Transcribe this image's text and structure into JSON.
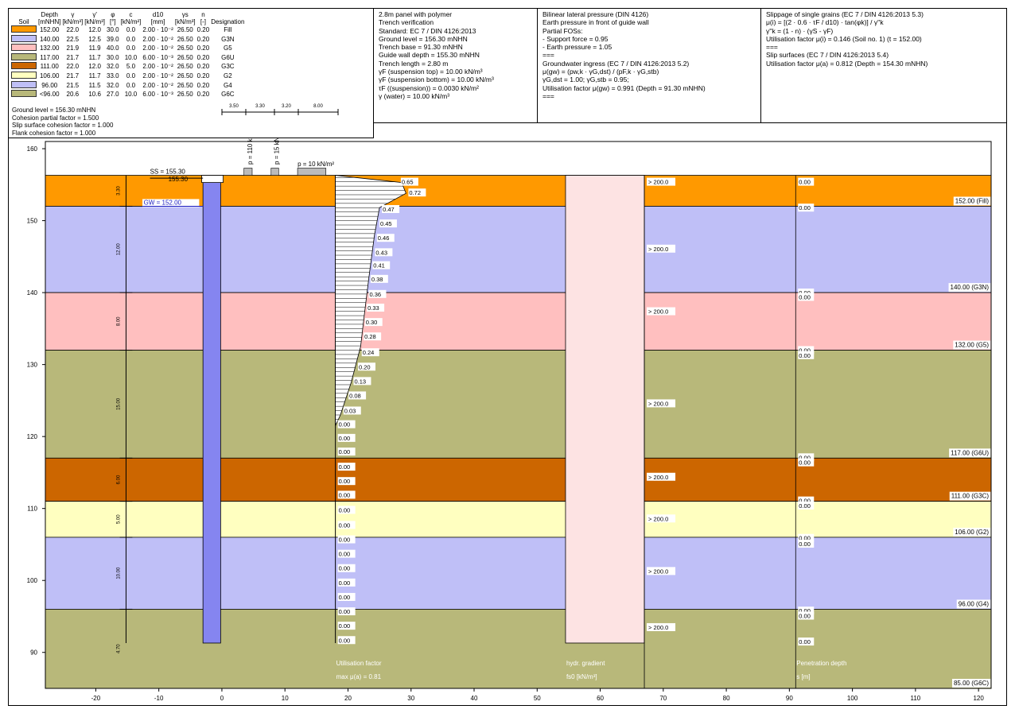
{
  "legend": {
    "headers": [
      "Soil",
      "Depth\n[mNHN]",
      "γ\n[kN/m³]",
      "γ'\n[kN/m³]",
      "φ\n[°]",
      "c\n[kN/m²]",
      "d10\n[mm]",
      "γs\n[kN/m³]",
      "n\n[-]",
      "Designation"
    ],
    "rows": [
      {
        "color": "#ff9900",
        "depth": "152.00",
        "g": "22.0",
        "g2": "12.0",
        "phi": "30.0",
        "c": "0.0",
        "d10": "2.00 · 10⁻²",
        "gs": "26.50",
        "n": "0.20",
        "des": "Fill"
      },
      {
        "color": "#bfbff7",
        "depth": "140.00",
        "g": "22.5",
        "g2": "12.5",
        "phi": "39.0",
        "c": "0.0",
        "d10": "2.00 · 10⁻²",
        "gs": "26.50",
        "n": "0.20",
        "des": "G3N"
      },
      {
        "color": "#ffbfbf",
        "depth": "132.00",
        "g": "21.9",
        "g2": "11.9",
        "phi": "40.0",
        "c": "0.0",
        "d10": "2.00 · 10⁻²",
        "gs": "26.50",
        "n": "0.20",
        "des": "G5"
      },
      {
        "color": "#b8b87a",
        "depth": "117.00",
        "g": "21.7",
        "g2": "11.7",
        "phi": "30.0",
        "c": "10.0",
        "d10": "6.00 · 10⁻³",
        "gs": "26.50",
        "n": "0.20",
        "des": "G6U"
      },
      {
        "color": "#cc6600",
        "depth": "111.00",
        "g": "22.0",
        "g2": "12.0",
        "phi": "32.0",
        "c": "5.0",
        "d10": "2.00 · 10⁻²",
        "gs": "26.50",
        "n": "0.20",
        "des": "G3C"
      },
      {
        "color": "#ffffc0",
        "depth": "106.00",
        "g": "21.7",
        "g2": "11.7",
        "phi": "33.0",
        "c": "0.0",
        "d10": "2.00 · 10⁻²",
        "gs": "26.50",
        "n": "0.20",
        "des": "G2"
      },
      {
        "color": "#bfbff7",
        "depth": "96.00",
        "g": "21.5",
        "g2": "11.5",
        "phi": "32.0",
        "c": "0.0",
        "d10": "2.00 · 10⁻²",
        "gs": "26.50",
        "n": "0.20",
        "des": "G4"
      },
      {
        "color": "#b8b87a",
        "depth": "<96.00",
        "g": "20.6",
        "g2": "10.6",
        "phi": "27.0",
        "c": "10.0",
        "d10": "6.00 · 10⁻³",
        "gs": "26.50",
        "n": "0.20",
        "des": "G6C"
      }
    ],
    "footer": [
      "Ground level = 156.30 mNHN",
      "Cohesion partial factor = 1.500",
      "Slip surface cohesion factor = 1.000",
      "Flank cohesion factor = 1.000"
    ],
    "dims": [
      "3.50",
      "3.30",
      "3.20",
      "8.00"
    ]
  },
  "info": {
    "col1": [
      "2.8m panel with polymer",
      "Trench verification",
      "Standard: EC 7 / DIN 4126:2013",
      "Ground level = 156.30 mNHN",
      "Trench base = 91.30 mNHN",
      "Guide wall depth = 155.30 mNHN",
      "Trench length = 2.80 m",
      "γF (suspension top) = 10.00 kN/m³",
      "γF (suspension bottom) = 10.00 kN/m³",
      "τF ((suspension)) = 0.0030 kN/m²",
      "γ (water) = 10.00 kN/m³"
    ],
    "col2": [
      "Bilinear lateral pressure (DIN 4126)",
      "Earth pressure in front of guide wall",
      "Partial FOSs:",
      "- Support force = 0.95",
      "- Earth pressure = 1.05",
      "===",
      "Groundwater ingress (EC 7 / DIN 4126:2013 5.2)",
      "μ(gw) = (pw,k · γG,dst) / (pF,k · γG,stb)",
      "γG,dst = 1.00;  γG,stb = 0.95;",
      "Utilisation factor μ(gw) = 0.991 (Depth = 91.30 mNHN)",
      "==="
    ],
    "col3": [
      "Slippage of single grains (EC 7 / DIN 4126:2013 5.3)",
      "μ(i) = [(2 · 0.6 · τF / d10) · tan(φk)] / γ''k",
      "γ''k = (1 - n) · (γS - γF)",
      "Utilisation factor μ(i) = 0.146 (Soil no. 1) (t = 152.00)",
      "===",
      "Slip surfaces (EC 7 / DIN 4126:2013 5.4)",
      "Utilisation factor μ(a) = 0.812 (Depth = 154.30 mNHN)"
    ]
  },
  "chart_data": {
    "type": "diagram",
    "title": "",
    "xlim": [
      -28,
      122
    ],
    "ylim": [
      85,
      161
    ],
    "xticks": [
      -20,
      -10,
      0,
      10,
      20,
      30,
      40,
      50,
      60,
      70,
      80,
      90,
      100,
      110,
      120
    ],
    "yticks": [
      90,
      100,
      110,
      120,
      130,
      140,
      150,
      160
    ],
    "layers": [
      {
        "top": 156.3,
        "bottom": 152,
        "color": "#ff9900",
        "label": "152.00 (Fill)",
        "thick": "3.30"
      },
      {
        "top": 152,
        "bottom": 140,
        "color": "#bfbff7",
        "label": "140.00 (G3N)",
        "thick": "12.00"
      },
      {
        "top": 140,
        "bottom": 132,
        "color": "#ffbfbf",
        "label": "132.00 (G5)",
        "thick": "8.00"
      },
      {
        "top": 132,
        "bottom": 117,
        "color": "#b8b87a",
        "label": "117.00 (G6U)",
        "thick": "15.00"
      },
      {
        "top": 117,
        "bottom": 111,
        "color": "#cc6600",
        "label": "111.00 (G3C)",
        "thick": "6.00"
      },
      {
        "top": 111,
        "bottom": 106,
        "color": "#ffffc0",
        "label": "106.00 (G2)",
        "thick": "5.00"
      },
      {
        "top": 106,
        "bottom": 96,
        "color": "#bfbff7",
        "label": "96.00 (G4)",
        "thick": "10.00"
      },
      {
        "top": 96,
        "bottom": 85,
        "color": "#b8b87a",
        "label": "85.00 (G6C)",
        "thick": "4.70"
      }
    ],
    "ss_label": "SS = 155.30",
    "gw_label": "GW = 152.00",
    "guide_label": "155.30",
    "loads": [
      "p = 110 kN/m²",
      "p = 15 kN/m²",
      "p = 10 kN/m²"
    ],
    "util_values": [
      {
        "depth": 155.3,
        "v": "0.65",
        "x": 28.0
      },
      {
        "depth": 153.8,
        "v": "0.72",
        "x": 29.2
      },
      {
        "depth": 151.5,
        "v": "0.47",
        "x": 25.0
      },
      {
        "depth": 149.5,
        "v": "0.45",
        "x": 24.6
      },
      {
        "depth": 147.5,
        "v": "0.46",
        "x": 24.2
      },
      {
        "depth": 145.5,
        "v": "0.43",
        "x": 23.9
      },
      {
        "depth": 143.7,
        "v": "0.41",
        "x": 23.5
      },
      {
        "depth": 141.8,
        "v": "0.38",
        "x": 23.2
      },
      {
        "depth": 139.7,
        "v": "0.36",
        "x": 22.9
      },
      {
        "depth": 137.8,
        "v": "0.33",
        "x": 22.6
      },
      {
        "depth": 135.8,
        "v": "0.30",
        "x": 22.3
      },
      {
        "depth": 133.8,
        "v": "0.28",
        "x": 22.1
      },
      {
        "depth": 131.6,
        "v": "0.24",
        "x": 21.8
      },
      {
        "depth": 129.6,
        "v": "0.20",
        "x": 21.2
      },
      {
        "depth": 127.6,
        "v": "0.13",
        "x": 20.5
      },
      {
        "depth": 125.6,
        "v": "0.08",
        "x": 19.7
      },
      {
        "depth": 123.5,
        "v": "0.03",
        "x": 18.9
      },
      {
        "depth": 121.6,
        "v": "0.00"
      },
      {
        "depth": 119.7,
        "v": "0.00"
      },
      {
        "depth": 117.8,
        "v": "0.00"
      },
      {
        "depth": 115.7,
        "v": "0.00"
      },
      {
        "depth": 113.7,
        "v": "0.00"
      },
      {
        "depth": 111.8,
        "v": "0.00"
      },
      {
        "depth": 109.7,
        "v": "0.00"
      },
      {
        "depth": 107.6,
        "v": "0.00"
      },
      {
        "depth": 105.6,
        "v": "0.00"
      },
      {
        "depth": 103.6,
        "v": "0.00"
      },
      {
        "depth": 101.6,
        "v": "0.00"
      },
      {
        "depth": 99.6,
        "v": "0.00"
      },
      {
        "depth": 97.6,
        "v": "0.00"
      },
      {
        "depth": 95.6,
        "v": "0.00"
      },
      {
        "depth": 93.6,
        "v": "0.00"
      },
      {
        "depth": 91.6,
        "v": "0.00"
      }
    ],
    "gradient_values": [
      "> 200.0",
      "> 200.0",
      "> 200.0",
      "> 200.0",
      "> 200.0",
      "> 200.0",
      "> 200.0",
      "> 200.0"
    ],
    "penetration_values": [
      "0.00",
      "0.00",
      "0.00",
      "0.00",
      "0.00",
      "0.00",
      "0.00",
      "0.00",
      "0.00",
      "0.00",
      "0.00",
      "0.00",
      "0.00",
      "0.00",
      "0.00",
      "0.00"
    ],
    "util_title": [
      "Utilisation factor",
      "max μ(a) = 0.81"
    ],
    "gradient_title": [
      "hydr. gradient",
      "fs0 [kN/m³]"
    ],
    "pen_title": [
      "Penetration depth",
      "s [m]"
    ]
  }
}
